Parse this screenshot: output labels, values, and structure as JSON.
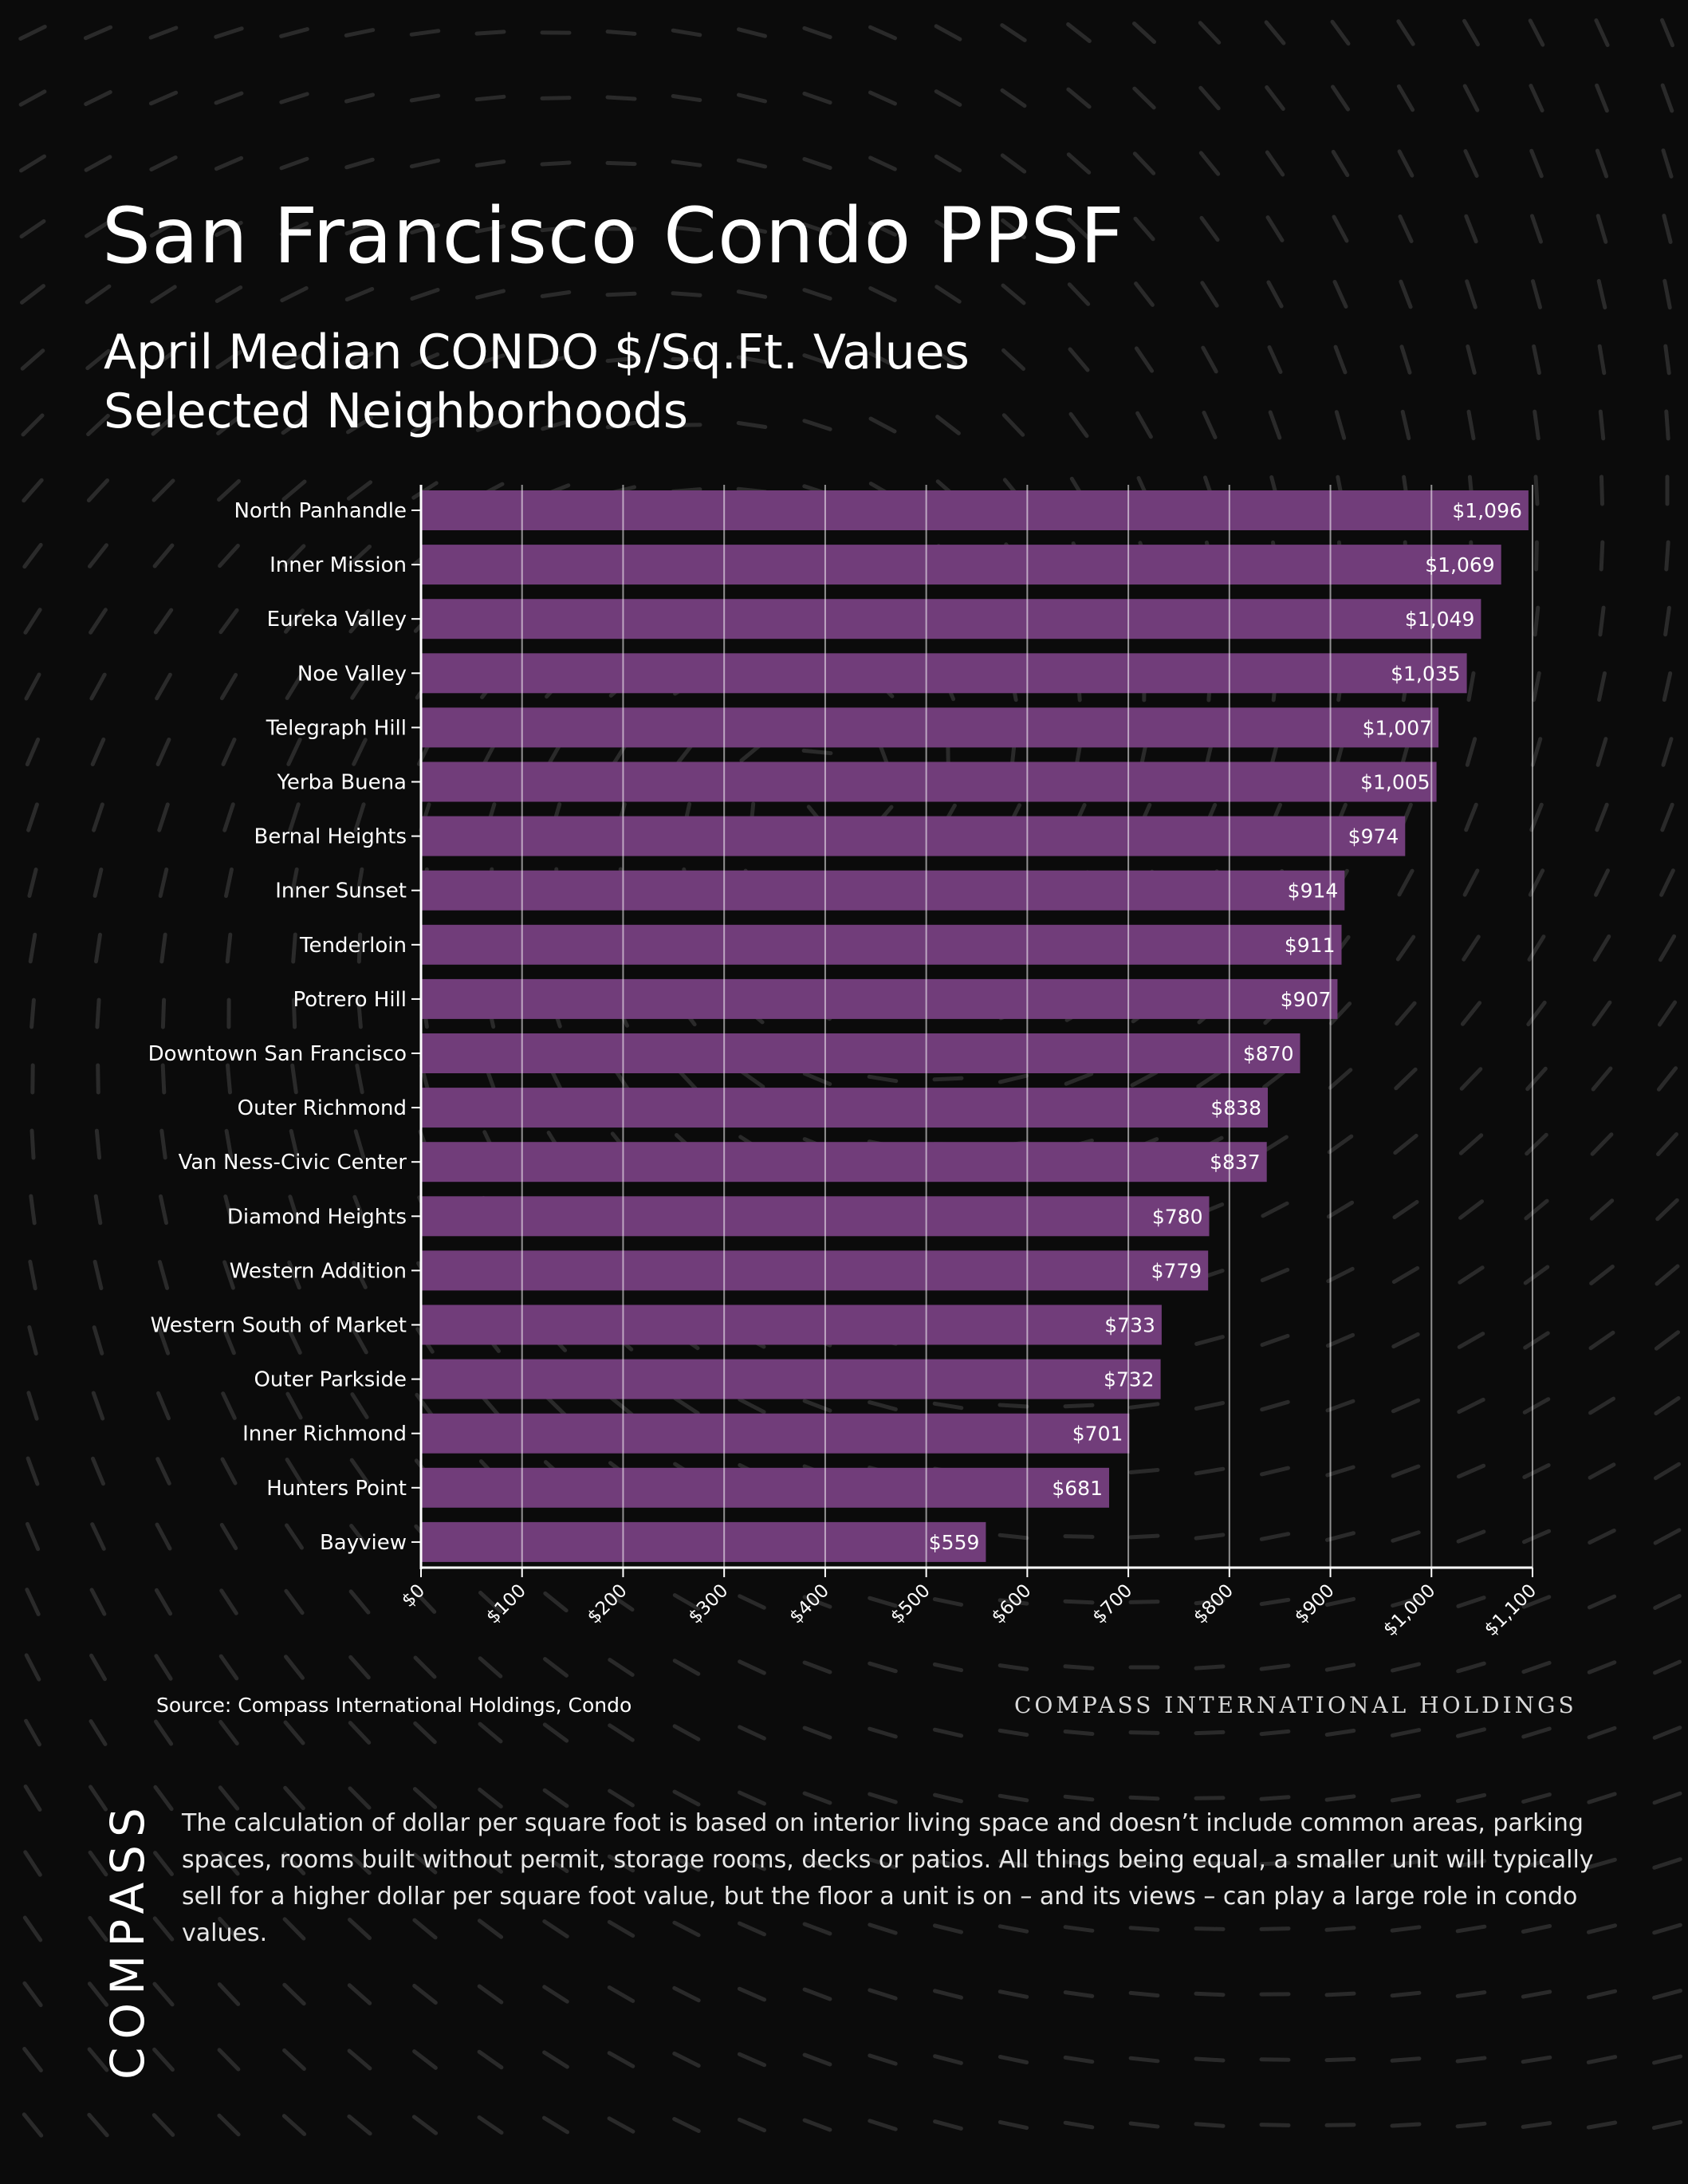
{
  "header": {
    "title": "San Francisco Condo PPSF",
    "subtitle_line1": "April Median CONDO $/Sq.Ft. Values",
    "subtitle_line2": "Selected Neighborhoods"
  },
  "footer": {
    "source": "Source: Compass International Holdings, Condo",
    "brand_line": "COMPASS INTERNATIONAL HOLDINGS",
    "logo": "COMPASS",
    "note": "The calculation of dollar per square foot is based on interior living space and doesn’t include common areas, parking spaces, rooms built without permit, storage rooms, decks or patios. All things being equal, a smaller unit will typically sell for a higher dollar per square foot value, but the floor a unit is on – and its views – can play a large role in condo values."
  },
  "colors": {
    "background": "#0b0b0b",
    "bar": "#713d7a",
    "gridline": "#ffffff",
    "text": "#ffffff"
  },
  "chart_data": {
    "type": "bar",
    "orientation": "horizontal",
    "title": "San Francisco Condo PPSF",
    "subtitle": "April Median CONDO $/Sq.Ft. Values Selected Neighborhoods",
    "xlabel": "",
    "ylabel": "",
    "xlim": [
      0,
      1100
    ],
    "grid": true,
    "categories": [
      "North Panhandle",
      "Inner Mission",
      "Eureka Valley",
      "Noe Valley",
      "Telegraph Hill",
      "Yerba Buena",
      "Bernal Heights",
      "Inner Sunset",
      "Tenderloin",
      "Potrero Hill",
      "Downtown San Francisco",
      "Outer Richmond",
      "Van Ness-Civic Center",
      "Diamond Heights",
      "Western Addition",
      "Western South of Market",
      "Outer Parkside",
      "Inner Richmond",
      "Hunters Point",
      "Bayview"
    ],
    "values": [
      1096,
      1069,
      1049,
      1035,
      1007,
      1005,
      974,
      914,
      911,
      907,
      870,
      838,
      837,
      780,
      779,
      733,
      732,
      701,
      681,
      559
    ],
    "data_labels": [
      "$1,096",
      "$1,069",
      "$1,049",
      "$1,035",
      "$1,007",
      "$1,005",
      "$974",
      "$914",
      "$911",
      "$907",
      "$870",
      "$838",
      "$837",
      "$780",
      "$779",
      "$733",
      "$732",
      "$701",
      "$681",
      "$559"
    ],
    "tick_values": [
      0,
      100,
      200,
      300,
      400,
      500,
      600,
      700,
      800,
      900,
      1000,
      1100
    ],
    "tick_labels": [
      "$0",
      "$100",
      "$200",
      "$300",
      "$400",
      "$500",
      "$600",
      "$700",
      "$800",
      "$900",
      "$1,000",
      "$1,100"
    ]
  }
}
